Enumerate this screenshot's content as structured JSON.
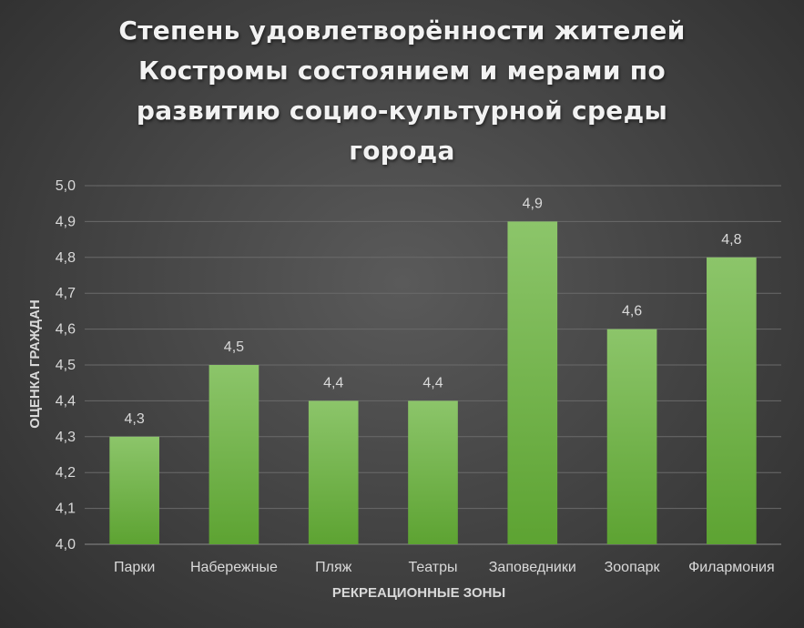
{
  "chart_data": {
    "type": "bar",
    "title_lines": [
      "Степень удовлетворённости жителей",
      "Костромы состоянием и мерами по",
      "развитию социо-культурной среды",
      "города"
    ],
    "xlabel": "РЕКРЕАЦИОННЫЕ ЗОНЫ",
    "ylabel": "ОЦЕНКА ГРАЖДАН",
    "categories": [
      "Парки",
      "Набережные",
      "Пляж",
      "Театры",
      "Заповедники",
      "Зоопарк",
      "Филармония"
    ],
    "values": [
      4.3,
      4.5,
      4.4,
      4.4,
      4.9,
      4.6,
      4.8
    ],
    "data_labels": [
      "4,3",
      "4,5",
      "4,4",
      "4,4",
      "4,9",
      "4,6",
      "4,8"
    ],
    "ylim": [
      4.0,
      5.0
    ],
    "yticks": [
      4.0,
      4.1,
      4.2,
      4.3,
      4.4,
      4.5,
      4.6,
      4.7,
      4.8,
      4.9,
      5.0
    ],
    "ytick_labels": [
      "4,0",
      "4,1",
      "4,2",
      "4,3",
      "4,4",
      "4,5",
      "4,6",
      "4,7",
      "4,8",
      "4,9",
      "5,0"
    ],
    "grid": true,
    "bar_color": "#6db33f"
  }
}
